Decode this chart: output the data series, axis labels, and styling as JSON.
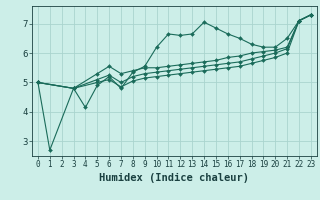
{
  "xlabel": "Humidex (Indice chaleur)",
  "bg_color": "#cceee8",
  "grid_color": "#aad4ce",
  "line_color": "#1a6b5a",
  "xlim": [
    -0.5,
    23.5
  ],
  "ylim": [
    2.5,
    7.6
  ],
  "yticks": [
    3,
    4,
    5,
    6,
    7
  ],
  "xticks": [
    0,
    1,
    2,
    3,
    4,
    5,
    6,
    7,
    8,
    9,
    10,
    11,
    12,
    13,
    14,
    15,
    16,
    17,
    18,
    19,
    20,
    21,
    22,
    23
  ],
  "lines": [
    {
      "x": [
        0,
        1,
        3,
        4,
        5,
        6,
        7,
        8,
        9,
        10,
        11,
        12,
        13,
        14,
        15,
        16,
        17,
        18,
        19,
        20,
        21,
        22,
        23
      ],
      "y": [
        5.0,
        2.7,
        4.8,
        4.15,
        4.9,
        5.2,
        4.8,
        5.35,
        5.55,
        6.2,
        6.65,
        6.6,
        6.65,
        7.05,
        6.85,
        6.65,
        6.5,
        6.3,
        6.2,
        6.2,
        6.5,
        7.1,
        7.3
      ]
    },
    {
      "x": [
        0,
        3,
        5,
        6,
        7,
        8,
        9,
        10,
        11,
        12,
        13,
        14,
        15,
        16,
        17,
        18,
        19,
        20,
        21,
        22,
        23
      ],
      "y": [
        5.0,
        4.8,
        5.3,
        5.55,
        5.3,
        5.4,
        5.5,
        5.5,
        5.55,
        5.6,
        5.65,
        5.7,
        5.75,
        5.85,
        5.9,
        6.0,
        6.05,
        6.1,
        6.2,
        7.1,
        7.3
      ]
    },
    {
      "x": [
        0,
        3,
        5,
        6,
        7,
        8,
        9,
        10,
        11,
        12,
        13,
        14,
        15,
        16,
        17,
        18,
        19,
        20,
        21,
        22,
        23
      ],
      "y": [
        5.0,
        4.8,
        5.1,
        5.25,
        5.0,
        5.2,
        5.3,
        5.35,
        5.4,
        5.45,
        5.5,
        5.55,
        5.6,
        5.65,
        5.7,
        5.8,
        5.9,
        6.0,
        6.15,
        7.1,
        7.3
      ]
    },
    {
      "x": [
        0,
        3,
        5,
        6,
        7,
        8,
        9,
        10,
        11,
        12,
        13,
        14,
        15,
        16,
        17,
        18,
        19,
        20,
        21,
        22,
        23
      ],
      "y": [
        5.0,
        4.8,
        5.0,
        5.1,
        4.85,
        5.05,
        5.15,
        5.2,
        5.25,
        5.3,
        5.35,
        5.4,
        5.45,
        5.5,
        5.55,
        5.65,
        5.75,
        5.85,
        6.0,
        7.1,
        7.3
      ]
    }
  ],
  "font_color": "#1a4040",
  "tick_fontsize": 5.5,
  "label_fontsize": 7.5
}
